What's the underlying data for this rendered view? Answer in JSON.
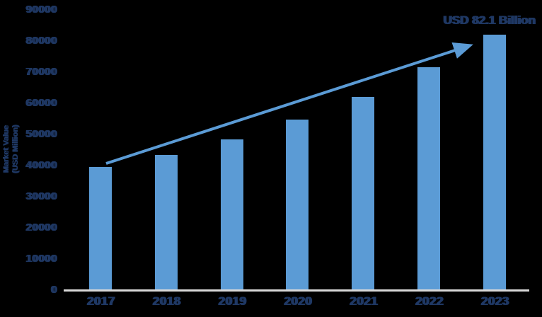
{
  "chart_data": {
    "type": "bar",
    "title": "",
    "xlabel": "",
    "ylabel_lines": [
      "Market Value",
      "(USD Million)"
    ],
    "categories": [
      "2017",
      "2018",
      "2019",
      "2020",
      "2021",
      "2022",
      "2023"
    ],
    "values": [
      39500,
      43500,
      48500,
      54800,
      62100,
      71500,
      82100
    ],
    "ylim": [
      0,
      90000
    ],
    "ytick_labels": [
      "0",
      "10000",
      "20000",
      "30000",
      "40000",
      "50000",
      "60000",
      "70000",
      "80000",
      "90000"
    ],
    "grid": false,
    "legend_position": "none",
    "annotation": "USD 82.1 Billion",
    "trend_arrow": {
      "from_category": "2017",
      "to_category": "2023"
    }
  },
  "colors": {
    "bar": "#5B9BD5",
    "arrow": "#5B9BD5",
    "text": "#1F3864",
    "axis_line": "#D9D9D9",
    "background": "#000000"
  }
}
